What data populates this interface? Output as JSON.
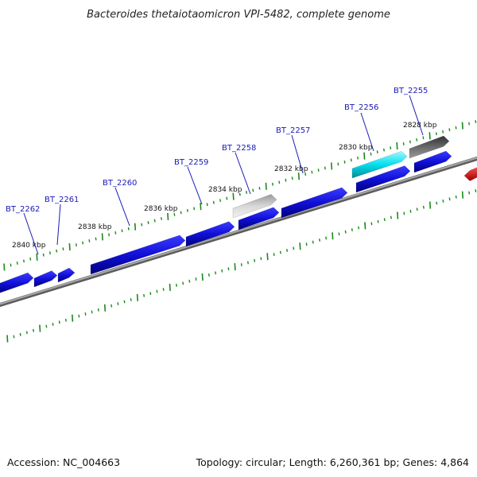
{
  "title": "Bacteroides thetaiotaomicron VPI-5482, complete genome",
  "footer": {
    "accession": "Accession: NC_004663",
    "summary": "Topology: circular; Length: 6,260,361 bp; Genes: 4,864"
  },
  "kbp_labels": [
    "2840 kbp",
    "2838 kbp",
    "2836 kbp",
    "2834 kbp",
    "2832 kbp",
    "2830 kbp",
    "2828 kbp"
  ],
  "gene_labels": [
    "BT_2262",
    "BT_2261",
    "BT_2260",
    "BT_2259",
    "BT_2258",
    "BT_2257",
    "BT_2256",
    "BT_2255"
  ],
  "colors": {
    "gene": "#1010d8",
    "highlight": "#00e0f0",
    "pseudo_light": "#b8b8b8",
    "pseudo_dark": "#5a5a5a",
    "other": "#e01010",
    "tick": "#1a8a1a",
    "backbone": "#808080",
    "label": "#1a1ab8"
  }
}
